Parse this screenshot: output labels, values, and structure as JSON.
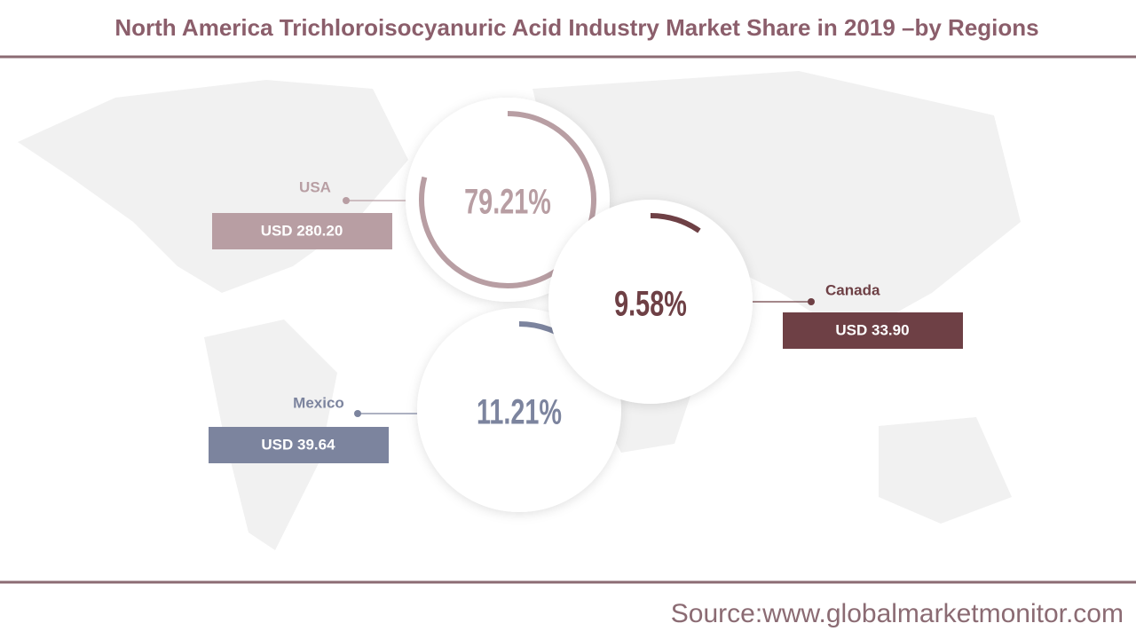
{
  "chart_data": {
    "type": "ring",
    "title": "North America Trichloroisocyanuric Acid Industry Market Share in 2019 –by Regions",
    "categories": [
      "USA",
      "Canada",
      "Mexico"
    ],
    "values": [
      79.21,
      9.58,
      11.21
    ],
    "value_labels": [
      "79.21%",
      "9.58%",
      "11.21%"
    ],
    "amounts": [
      280.2,
      33.9,
      39.64
    ],
    "amount_labels": [
      "USD 280.20",
      "USD 33.90",
      "USD 39.64"
    ],
    "colors": [
      "#b89ea3",
      "#6e4045",
      "#7c849e"
    ],
    "source": "Source:www.globalmarketmonitor.com"
  }
}
